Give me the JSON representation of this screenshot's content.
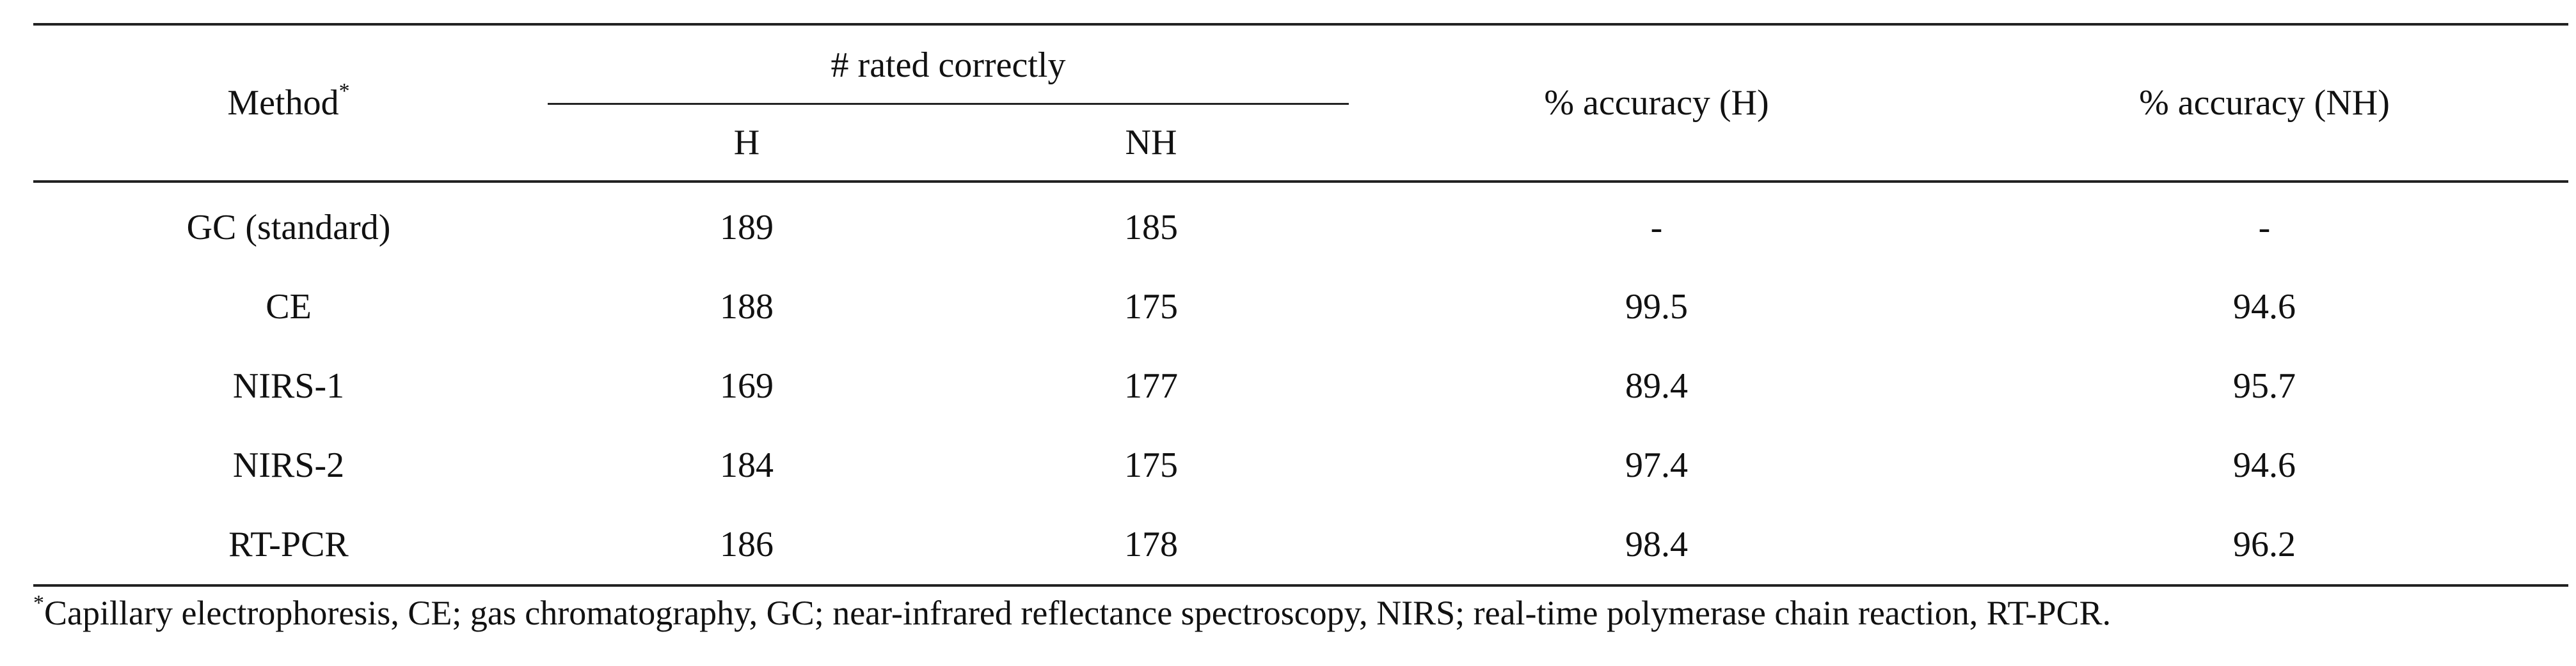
{
  "table": {
    "headers": {
      "method": "Method",
      "method_marker": "*",
      "rated_correctly": "# rated correctly",
      "h": "H",
      "nh": "NH",
      "accuracy_h": "% accuracy (H)",
      "accuracy_nh": "% accuracy (NH)"
    },
    "rows": [
      {
        "method": "GC (standard)",
        "h": "189",
        "nh": "185",
        "acc_h": "-",
        "acc_nh": "-"
      },
      {
        "method": "CE",
        "h": "188",
        "nh": "175",
        "acc_h": "99.5",
        "acc_nh": "94.6"
      },
      {
        "method": "NIRS-1",
        "h": "169",
        "nh": "177",
        "acc_h": "89.4",
        "acc_nh": "95.7"
      },
      {
        "method": "NIRS-2",
        "h": "184",
        "nh": "175",
        "acc_h": "97.4",
        "acc_nh": "94.6"
      },
      {
        "method": "RT-PCR",
        "h": "186",
        "nh": "178",
        "acc_h": "98.4",
        "acc_nh": "96.2"
      }
    ]
  },
  "footnote": {
    "marker": "*",
    "text": "Capillary electrophoresis, CE; gas chromatography, GC; near-infrared reflectance spectroscopy, NIRS; real-time polymerase chain reaction, RT-PCR."
  }
}
